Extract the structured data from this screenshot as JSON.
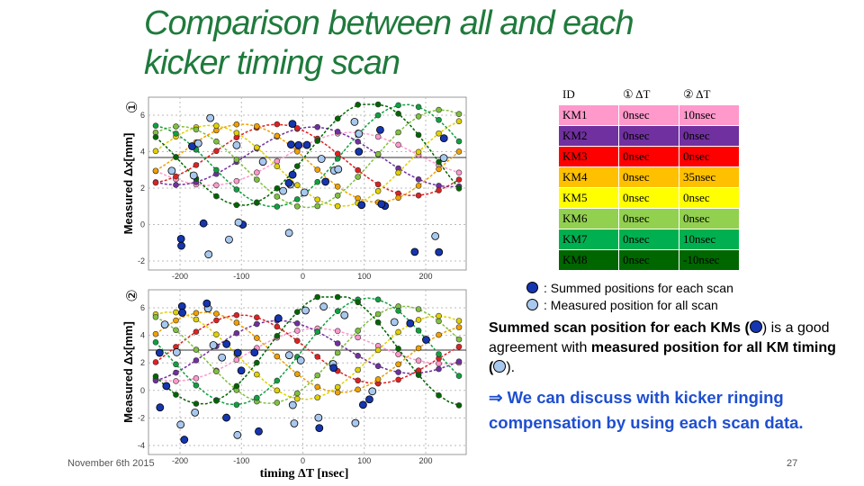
{
  "title_lines": [
    "Comparison between all and each",
    "kicker timing scan"
  ],
  "plots": [
    {
      "label": "①",
      "axis_label": "Measured Δx[mm]",
      "yticks": [
        "6",
        "4",
        "2",
        "0",
        "-2"
      ],
      "xticks": [
        "-200",
        "-100",
        "0",
        "100",
        "200"
      ]
    },
    {
      "label": "②",
      "axis_label": "Measured Δx[mm]",
      "yticks": [
        "6",
        "4",
        "2",
        "0",
        "-2",
        "-4"
      ],
      "xticks": [
        "-200",
        "-100",
        "0",
        "100",
        "200"
      ],
      "xlabel": "timing ΔT [nsec]"
    }
  ],
  "table": {
    "header": [
      "ID",
      "① ΔT",
      "② ΔT"
    ],
    "rows": [
      {
        "cells": [
          "KM1",
          "0nsec",
          "10nsec"
        ],
        "color": "#ff99cc"
      },
      {
        "cells": [
          "KM2",
          "0nsec",
          "0nsec"
        ],
        "color": "#7030a0"
      },
      {
        "cells": [
          "KM3",
          "0nsec",
          "0nsec"
        ],
        "color": "#ff0000"
      },
      {
        "cells": [
          "KM4",
          "0nsec",
          "35nsec"
        ],
        "color": "#ffc000"
      },
      {
        "cells": [
          "KM5",
          "0nsec",
          "0nsec"
        ],
        "color": "#ffff00"
      },
      {
        "cells": [
          "KM6",
          "0nsec",
          "0nsec"
        ],
        "color": "#92d050"
      },
      {
        "cells": [
          "KM7",
          "0nsec",
          "10nsec"
        ],
        "color": "#00b050"
      },
      {
        "cells": [
          "KM8",
          "0nsec",
          "-10nsec"
        ],
        "color": "#006600"
      }
    ]
  },
  "legend": [
    ": Summed positions for each scan",
    ": Measured position for all scan"
  ],
  "paragraph": [
    "Summed scan position for each KMs (",
    ") is a good agreement with ",
    "measured position for all KM timing (",
    ")."
  ],
  "conclusion": "⇒  We can discuss with kicker ringing compensation by using each scan data.",
  "footer": {
    "date": "November 6th 2015",
    "page": "27"
  }
}
